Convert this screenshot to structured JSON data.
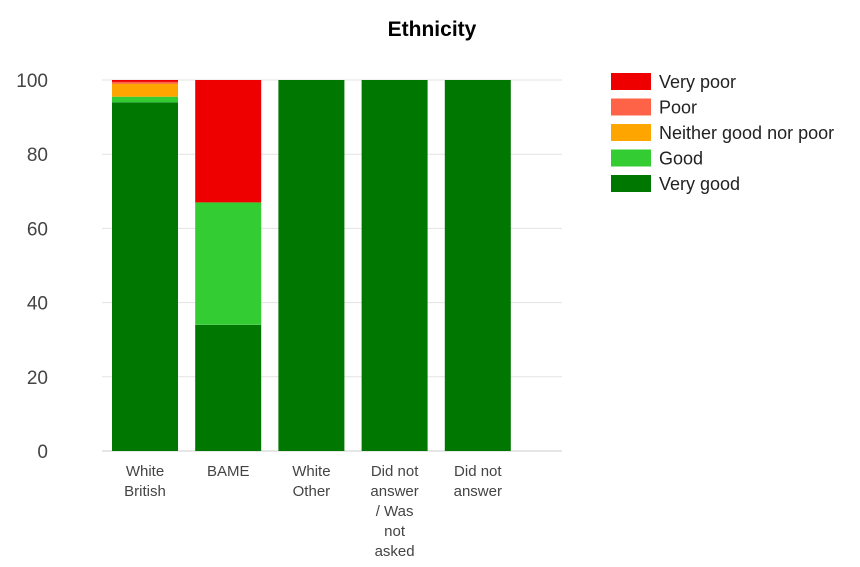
{
  "chart_data": {
    "type": "bar",
    "stacked": true,
    "title": "Ethnicity",
    "xlabel": "",
    "ylabel": "",
    "ylim": [
      0,
      100
    ],
    "yticks": [
      0,
      20,
      40,
      60,
      80,
      100
    ],
    "grid": true,
    "legend_position": "right",
    "categories": [
      [
        "White",
        "British"
      ],
      [
        "BAME"
      ],
      [
        "White",
        "Other"
      ],
      [
        "Did not",
        "answer",
        "/ Was",
        "not",
        "asked"
      ],
      [
        "Did not",
        "answer"
      ]
    ],
    "series": [
      {
        "name": "Very good",
        "color": "#007700",
        "values": [
          94,
          34,
          100,
          100,
          100
        ]
      },
      {
        "name": "Good",
        "color": "#33cc33",
        "values": [
          1.5,
          33,
          0,
          0,
          0
        ]
      },
      {
        "name": "Neither good nor poor",
        "color": "#ffa500",
        "values": [
          3.5,
          0,
          0,
          0,
          0
        ]
      },
      {
        "name": "Poor",
        "color": "#ff6347",
        "values": [
          0.5,
          0,
          0,
          0,
          0
        ]
      },
      {
        "name": "Very poor",
        "color": "#ee0000",
        "values": [
          0.5,
          33,
          0,
          0,
          0
        ]
      }
    ],
    "legend_order": [
      "Very poor",
      "Poor",
      "Neither good nor poor",
      "Good",
      "Very good"
    ]
  }
}
